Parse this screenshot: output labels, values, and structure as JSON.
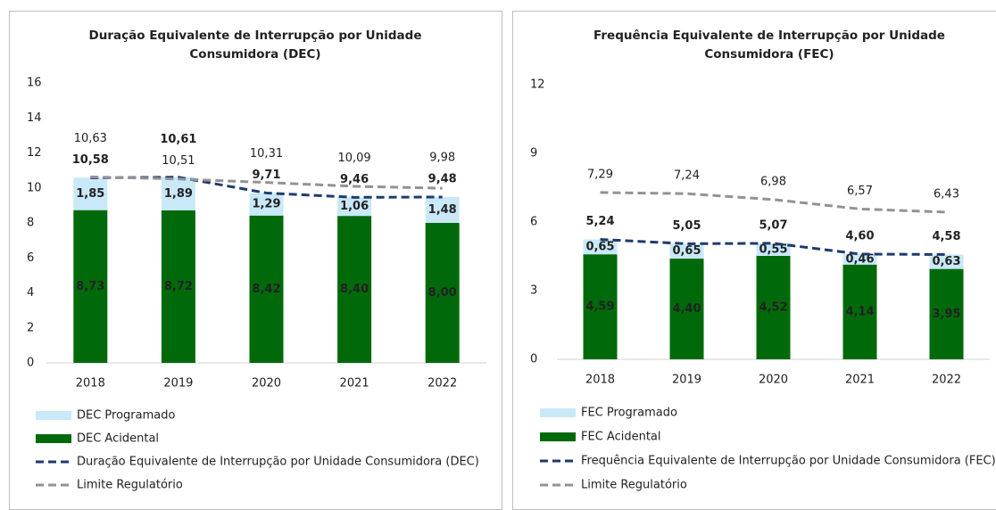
{
  "chart_data": [
    {
      "type": "bar",
      "title": "Duração Equivalente de Interrupção por Unidade Consumidora (DEC)",
      "categories": [
        "2018",
        "2019",
        "2020",
        "2021",
        "2022"
      ],
      "series": [
        {
          "name": "DEC Programado",
          "type": "bar",
          "color": "#c9e8f8",
          "values": [
            1.85,
            1.89,
            1.29,
            1.06,
            1.48
          ],
          "value_labels": [
            "1,85",
            "1,89",
            "1,29",
            "1,06",
            "1,48"
          ]
        },
        {
          "name": "DEC Acidental",
          "type": "bar",
          "color": "#006a0b",
          "values": [
            8.73,
            8.72,
            8.42,
            8.4,
            8.0
          ],
          "value_labels": [
            "8,73",
            "8,72",
            "8,42",
            "8,40",
            "8,00"
          ]
        },
        {
          "name": "Duração Equivalente de Interrupção por Unidade Consumidora (DEC)",
          "type": "line",
          "color": "#1f3a6e",
          "values": [
            10.58,
            10.61,
            9.71,
            9.46,
            9.48
          ],
          "value_labels": [
            "10,58",
            "10,61",
            "9,71",
            "9,46",
            "9,48"
          ]
        },
        {
          "name": "Limite Regulatório",
          "type": "line",
          "color": "#939393",
          "values": [
            10.63,
            10.51,
            10.31,
            10.09,
            9.98
          ],
          "value_labels": [
            "10,63",
            "10,51",
            "10,31",
            "10,09",
            "9,98"
          ]
        }
      ],
      "ylim": [
        0,
        16
      ],
      "yticks": [
        0,
        2,
        4,
        6,
        8,
        10,
        12,
        14,
        16
      ]
    },
    {
      "type": "bar",
      "title": "Frequência Equivalente de Interrupção por Unidade Consumidora (FEC)",
      "categories": [
        "2018",
        "2019",
        "2020",
        "2021",
        "2022"
      ],
      "series": [
        {
          "name": "FEC Programado",
          "type": "bar",
          "color": "#c9e8f8",
          "values": [
            0.65,
            0.65,
            0.55,
            0.46,
            0.63
          ],
          "value_labels": [
            "0,65",
            "0,65",
            "0,55",
            "0,46",
            "0,63"
          ]
        },
        {
          "name": "FEC Acidental",
          "type": "bar",
          "color": "#006a0b",
          "values": [
            4.59,
            4.4,
            4.52,
            4.14,
            3.95
          ],
          "value_labels": [
            "4,59",
            "4,40",
            "4,52",
            "4,14",
            "3,95"
          ]
        },
        {
          "name": "Frequência Equivalente de Interrupção por Unidade Consumidora (FEC)",
          "type": "line",
          "color": "#1f3a6e",
          "values": [
            5.24,
            5.05,
            5.07,
            4.6,
            4.58
          ],
          "value_labels": [
            "5,24",
            "5,05",
            "5,07",
            "4,60",
            "4,58"
          ]
        },
        {
          "name": "Limite Regulatório",
          "type": "line",
          "color": "#939393",
          "values": [
            7.29,
            7.24,
            6.98,
            6.57,
            6.43
          ],
          "value_labels": [
            "7,29",
            "7,24",
            "6,98",
            "6,57",
            "6,43"
          ]
        }
      ],
      "ylim": [
        0,
        12
      ],
      "yticks": [
        0,
        3,
        6,
        9,
        12
      ]
    }
  ]
}
